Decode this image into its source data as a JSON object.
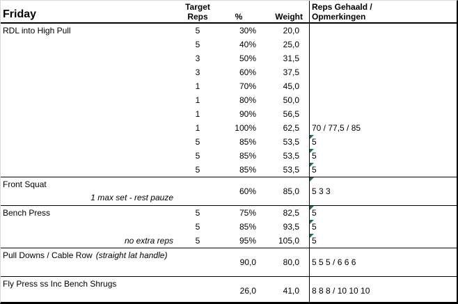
{
  "sheet": {
    "day": "Friday",
    "columns": {
      "target_reps": [
        "Target",
        "Reps"
      ],
      "percent": "%",
      "weight": "Weight",
      "result": [
        "Reps Gehaald /",
        "Opmerkingen"
      ]
    }
  },
  "colors": {
    "text": "#000000",
    "border": "#000000",
    "background": "#ffffff",
    "flag_green": "#1e7145"
  },
  "sections": [
    {
      "type": "rows",
      "name": "RDL into High Pull",
      "rows": [
        {
          "note": "",
          "reps": "5",
          "pct": "30%",
          "weight": "20,0",
          "result": "",
          "flag": false
        },
        {
          "note": "",
          "reps": "5",
          "pct": "40%",
          "weight": "25,0",
          "result": "",
          "flag": false
        },
        {
          "note": "",
          "reps": "3",
          "pct": "50%",
          "weight": "31,5",
          "result": "",
          "flag": false
        },
        {
          "note": "",
          "reps": "3",
          "pct": "60%",
          "weight": "37,5",
          "result": "",
          "flag": false
        },
        {
          "note": "",
          "reps": "1",
          "pct": "70%",
          "weight": "45,0",
          "result": "",
          "flag": false
        },
        {
          "note": "",
          "reps": "1",
          "pct": "80%",
          "weight": "50,0",
          "result": "",
          "flag": false
        },
        {
          "note": "",
          "reps": "1",
          "pct": "90%",
          "weight": "56,5",
          "result": "",
          "flag": false
        },
        {
          "note": "",
          "reps": "1",
          "pct": "100%",
          "weight": "62,5",
          "result": "70 / 77,5 / 85",
          "flag": false
        },
        {
          "note": "",
          "reps": "5",
          "pct": "85%",
          "weight": "53,5",
          "result": "5",
          "flag": true
        },
        {
          "note": "",
          "reps": "5",
          "pct": "85%",
          "weight": "53,5",
          "result": "5",
          "flag": true
        },
        {
          "note": "",
          "reps": "5",
          "pct": "85%",
          "weight": "53,5",
          "result": "5",
          "flag": true
        }
      ]
    },
    {
      "type": "merged",
      "name": "Front Squat",
      "name_suffix": "",
      "note": "1 max set - rest pauze",
      "row": {
        "reps": "",
        "pct": "60%",
        "weight": "85,0",
        "result": "5 3 3",
        "flag": true
      }
    },
    {
      "type": "rows",
      "name": "Bench Press",
      "rows": [
        {
          "note": "",
          "reps": "5",
          "pct": "75%",
          "weight": "82,5",
          "result": "5",
          "flag": true
        },
        {
          "note": "",
          "reps": "5",
          "pct": "85%",
          "weight": "93,5",
          "result": "5",
          "flag": true
        },
        {
          "note": "no extra reps",
          "reps": "5",
          "pct": "95%",
          "weight": "105,0",
          "result": "5",
          "flag": true
        }
      ]
    },
    {
      "type": "merged",
      "name": "Pull Downs / Cable Row",
      "name_suffix": "(straight lat handle)",
      "note": "",
      "row": {
        "reps": "",
        "pct": "90,0",
        "weight": "80,0",
        "result": "5 5 5 / 6 6 6",
        "flag": false
      }
    },
    {
      "type": "merged",
      "name": "Fly Press ss Inc Bench Shrugs",
      "name_suffix": "",
      "note": "",
      "row": {
        "reps": "",
        "pct": "26,0",
        "weight": "41,0",
        "result": "8 8 8 / 10 10 10",
        "flag": false
      }
    }
  ]
}
